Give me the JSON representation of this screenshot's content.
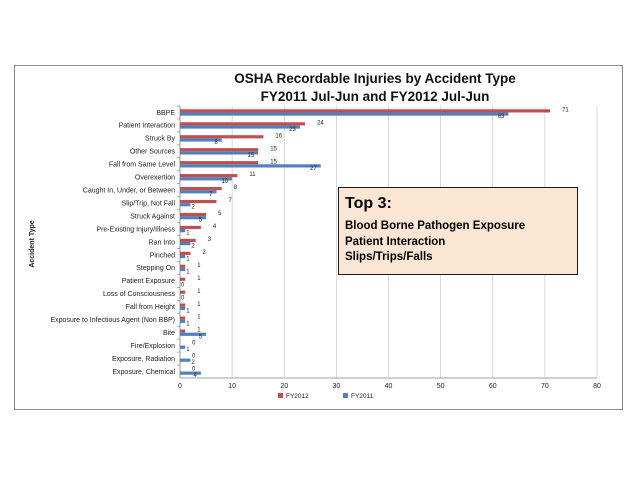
{
  "chart_data": {
    "type": "bar",
    "orientation": "horizontal",
    "title": "OSHA Recordable Injuries by Accident Type",
    "subtitle": "FY2011 Jul-Jun and FY2012 Jul-Jun",
    "ylabel": "Accident Type",
    "xlabel": "",
    "xlim": [
      0,
      80
    ],
    "xticks": [
      0,
      10,
      20,
      30,
      40,
      50,
      60,
      70,
      80
    ],
    "grid": true,
    "legend_position": "bottom",
    "categories": [
      "BBPE",
      "Patient Interaction",
      "Struck By",
      "Other Sources",
      "Fall from Same Level",
      "Overexertion",
      "Caught In, Under, or Between",
      "Slip/Trip, Not Fall",
      "Struck Against",
      "Pre-Existing Injury/Illness",
      "Ran Into",
      "Pinched",
      "Stepping On",
      "Patient Exposure",
      "Loss of Consciousness",
      "Fall from Height",
      "Exposure to Infectious Agent (Non BBP)",
      "Bite",
      "Fire/Explosion",
      "Exposure, Radiation",
      "Exposure, Chemical"
    ],
    "series": [
      {
        "name": "FY2012",
        "color": "#c0504d",
        "values": [
          71,
          24,
          16,
          15,
          15,
          11,
          8,
          7,
          5,
          4,
          3,
          2,
          1,
          1,
          1,
          1,
          1,
          1,
          0,
          0,
          0
        ]
      },
      {
        "name": "FY2011",
        "color": "#4f81bd",
        "values": [
          63,
          23,
          8,
          15,
          27,
          10,
          7,
          2,
          5,
          1,
          2,
          1,
          1,
          0,
          0,
          1,
          1,
          5,
          1,
          2,
          4
        ]
      }
    ]
  },
  "callout": {
    "heading": "Top 3:",
    "lines": [
      "Blood Borne Pathogen Exposure",
      "Patient Interaction",
      "Slips/Trips/Falls"
    ]
  }
}
